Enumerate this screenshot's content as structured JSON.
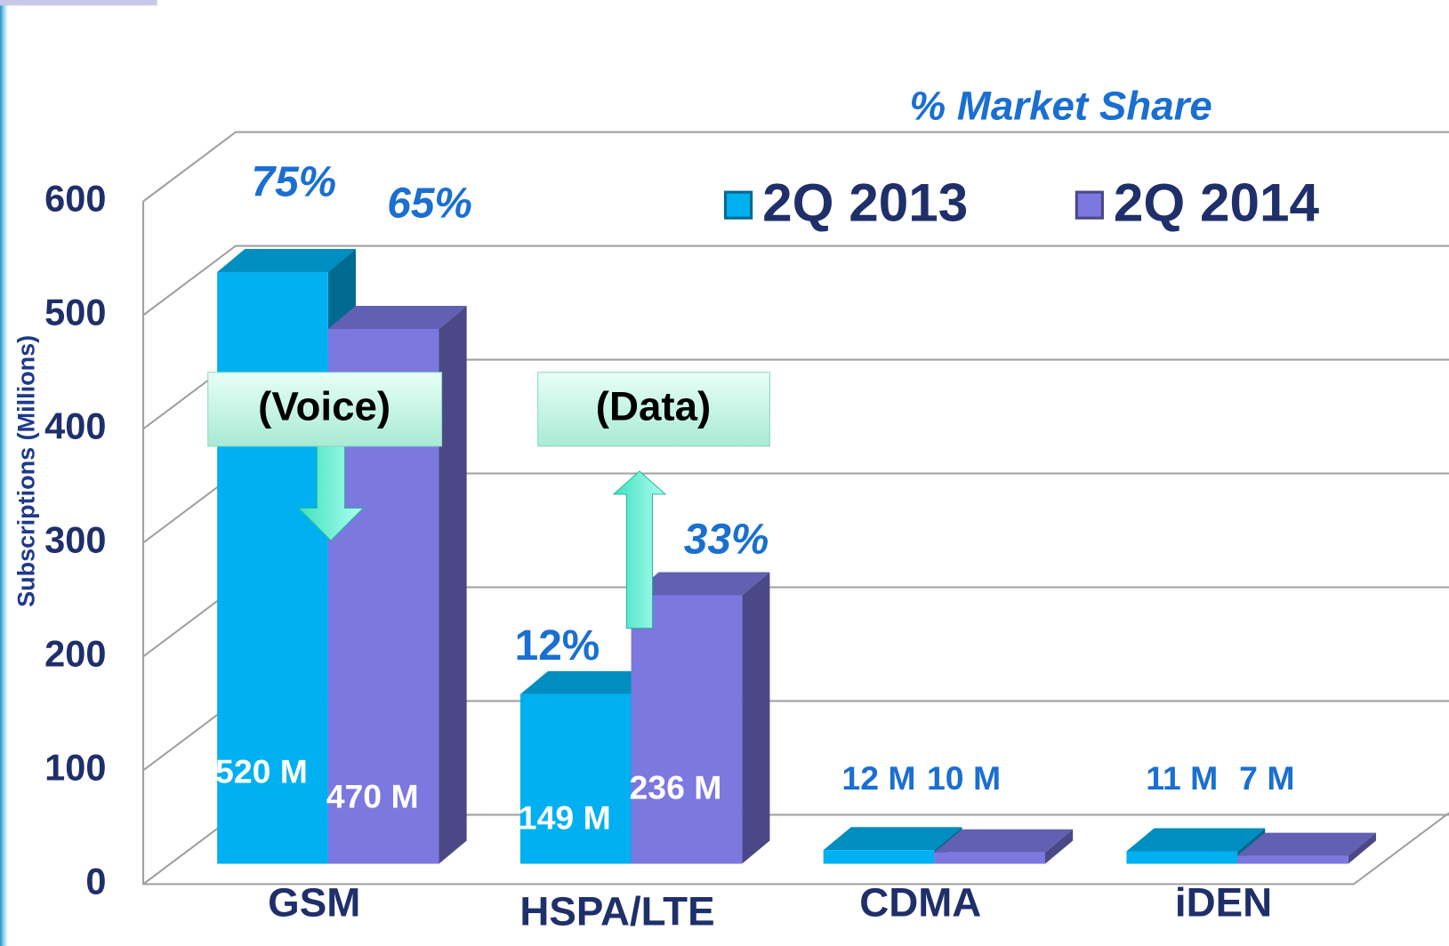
{
  "chart_data": {
    "type": "bar3d",
    "title": "% Market Share",
    "y_label": "Subscriptions (Millions)",
    "categories": [
      "GSM",
      "HSPA/LTE",
      "CDMA",
      "iDEN"
    ],
    "series": [
      {
        "name": "2Q 2013",
        "color": "#00b0f0",
        "values": [
          520,
          149,
          12,
          11
        ],
        "value_labels": [
          "520 M",
          "149 M",
          "12 M",
          "11 M"
        ]
      },
      {
        "name": "2Q 2014",
        "color": "#7b78e0",
        "values": [
          470,
          236,
          10,
          7
        ],
        "value_labels": [
          "470 M",
          "236 M",
          "10 M",
          "7 M"
        ]
      }
    ],
    "ylim": [
      0,
      600
    ],
    "yticks": [
      0,
      100,
      200,
      300,
      400,
      500,
      600
    ],
    "grid": true,
    "annotations": [
      "75%",
      "65%",
      "12%",
      "33%"
    ],
    "callouts": [
      "(Voice)",
      "(Data)"
    ]
  }
}
